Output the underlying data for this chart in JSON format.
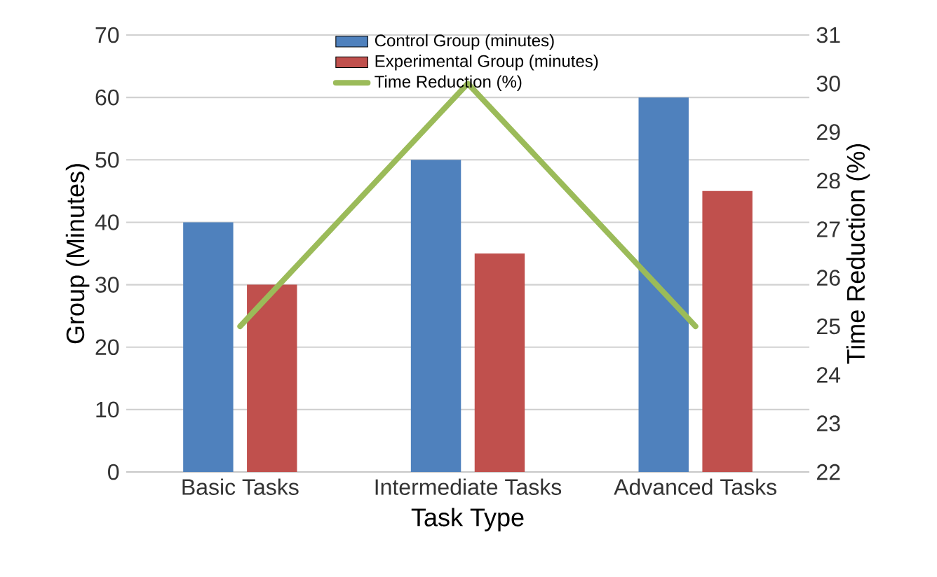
{
  "chart_data": {
    "type": "bar",
    "xlabel": "Task Type",
    "ylabel": "Group (Minutes)",
    "y2label": "Time Reduction (%)",
    "categories": [
      "Basic Tasks",
      "Intermediate Tasks",
      "Advanced Tasks"
    ],
    "series": [
      {
        "name": "Control Group (minutes)",
        "color": "#4f81bd",
        "values": [
          40,
          50,
          60
        ]
      },
      {
        "name": "Experimental Group (minutes)",
        "color": "#c0504d",
        "values": [
          30,
          35,
          45
        ]
      },
      {
        "name": "Time Reduction (%)",
        "color": "#9bbb59",
        "values": [
          25,
          30,
          25
        ],
        "type": "line",
        "axis": "y2"
      }
    ],
    "ylim": [
      0,
      70
    ],
    "yticks": [
      0,
      10,
      20,
      30,
      40,
      50,
      60,
      70
    ],
    "y2lim": [
      22,
      31
    ],
    "y2ticks": [
      22,
      23,
      24,
      25,
      26,
      27,
      28,
      29,
      30,
      31
    ],
    "grid": "y",
    "legend": "top"
  }
}
